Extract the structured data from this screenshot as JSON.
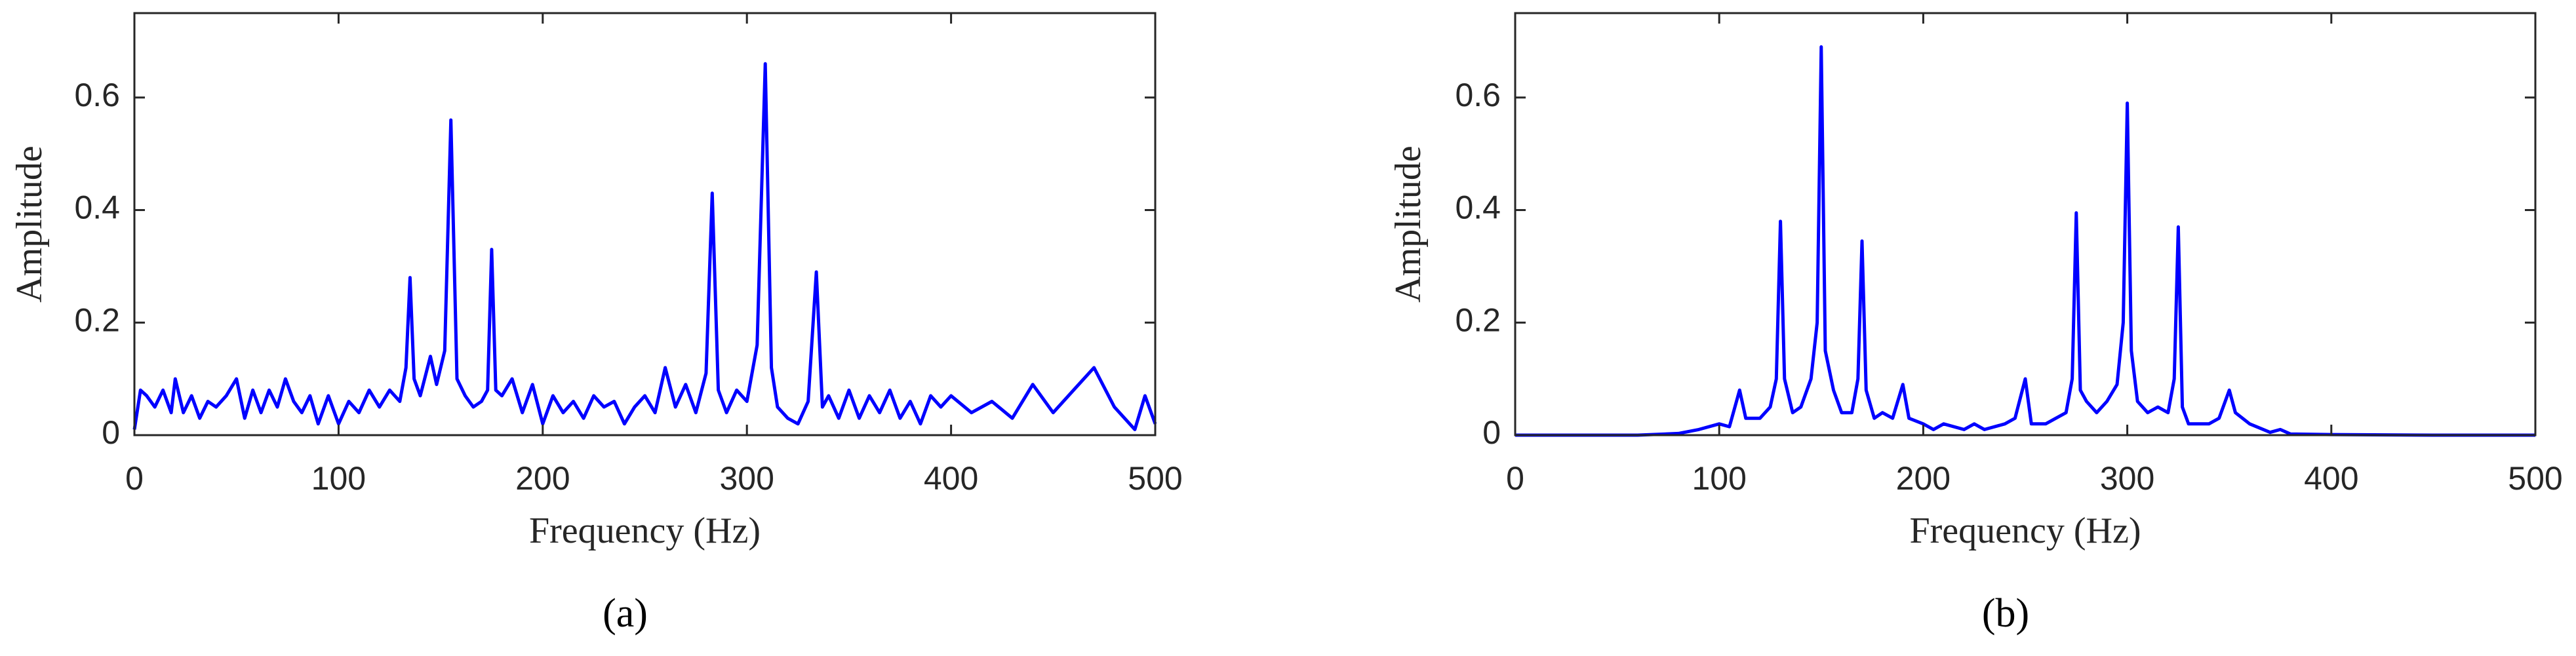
{
  "chart_data": [
    {
      "type": "line",
      "caption": "(a)",
      "xlabel": "Frequency (Hz)",
      "ylabel": "Amplitude",
      "color": "#0000ff",
      "xlim": [
        0,
        500
      ],
      "ylim": [
        0,
        0.75
      ],
      "xticks": [
        0,
        100,
        200,
        300,
        400,
        500
      ],
      "yticks": [
        0,
        0.2,
        0.4,
        0.6
      ],
      "x": [
        0,
        3,
        6,
        10,
        14,
        18,
        20,
        24,
        28,
        32,
        36,
        40,
        45,
        50,
        54,
        58,
        62,
        66,
        70,
        74,
        78,
        82,
        86,
        90,
        95,
        100,
        105,
        110,
        115,
        120,
        125,
        130,
        133,
        135,
        137,
        140,
        145,
        148,
        152,
        155,
        158,
        162,
        166,
        170,
        173,
        175,
        177,
        180,
        185,
        190,
        195,
        200,
        205,
        210,
        215,
        220,
        225,
        230,
        235,
        240,
        245,
        250,
        255,
        260,
        265,
        270,
        275,
        280,
        283,
        286,
        290,
        295,
        300,
        305,
        309,
        312,
        315,
        320,
        325,
        330,
        334,
        337,
        340,
        345,
        350,
        355,
        360,
        365,
        370,
        375,
        380,
        385,
        390,
        395,
        400,
        410,
        420,
        430,
        440,
        450,
        460,
        470,
        480,
        490,
        495,
        500
      ],
      "values": [
        0.01,
        0.08,
        0.07,
        0.05,
        0.08,
        0.04,
        0.1,
        0.04,
        0.07,
        0.03,
        0.06,
        0.05,
        0.07,
        0.1,
        0.03,
        0.08,
        0.04,
        0.08,
        0.05,
        0.1,
        0.06,
        0.04,
        0.07,
        0.02,
        0.07,
        0.02,
        0.06,
        0.04,
        0.08,
        0.05,
        0.08,
        0.06,
        0.12,
        0.28,
        0.1,
        0.07,
        0.14,
        0.09,
        0.15,
        0.56,
        0.1,
        0.07,
        0.05,
        0.06,
        0.08,
        0.33,
        0.08,
        0.07,
        0.1,
        0.04,
        0.09,
        0.02,
        0.07,
        0.04,
        0.06,
        0.03,
        0.07,
        0.05,
        0.06,
        0.02,
        0.05,
        0.07,
        0.04,
        0.12,
        0.05,
        0.09,
        0.04,
        0.11,
        0.43,
        0.08,
        0.04,
        0.08,
        0.06,
        0.16,
        0.66,
        0.12,
        0.05,
        0.03,
        0.02,
        0.06,
        0.29,
        0.05,
        0.07,
        0.03,
        0.08,
        0.03,
        0.07,
        0.04,
        0.08,
        0.03,
        0.06,
        0.02,
        0.07,
        0.05,
        0.07,
        0.04,
        0.06,
        0.03,
        0.09,
        0.04,
        0.08,
        0.12,
        0.05,
        0.01,
        0.07,
        0.02
      ]
    },
    {
      "type": "line",
      "caption": "(b)",
      "xlabel": "Frequency (Hz)",
      "ylabel": "Amplitude",
      "color": "#0000ff",
      "xlim": [
        0,
        500
      ],
      "ylim": [
        0,
        0.75
      ],
      "xticks": [
        0,
        100,
        200,
        300,
        400,
        500
      ],
      "yticks": [
        0,
        0.2,
        0.4,
        0.6
      ],
      "x": [
        0,
        20,
        40,
        60,
        80,
        90,
        100,
        105,
        110,
        113,
        120,
        125,
        128,
        130,
        132,
        136,
        140,
        145,
        148,
        150,
        152,
        156,
        160,
        165,
        168,
        170,
        172,
        176,
        180,
        185,
        190,
        193,
        200,
        205,
        210,
        220,
        225,
        230,
        240,
        245,
        250,
        253,
        260,
        265,
        270,
        273,
        275,
        277,
        280,
        285,
        290,
        295,
        298,
        300,
        302,
        305,
        310,
        315,
        320,
        323,
        325,
        327,
        330,
        340,
        345,
        350,
        353,
        360,
        370,
        375,
        380,
        400,
        450,
        500
      ],
      "values": [
        0,
        0,
        0,
        0,
        0.003,
        0.01,
        0.02,
        0.015,
        0.08,
        0.03,
        0.03,
        0.05,
        0.1,
        0.38,
        0.1,
        0.04,
        0.05,
        0.1,
        0.2,
        0.69,
        0.15,
        0.08,
        0.04,
        0.04,
        0.1,
        0.345,
        0.08,
        0.03,
        0.04,
        0.03,
        0.09,
        0.03,
        0.02,
        0.01,
        0.02,
        0.01,
        0.02,
        0.01,
        0.02,
        0.03,
        0.1,
        0.02,
        0.02,
        0.03,
        0.04,
        0.1,
        0.395,
        0.08,
        0.06,
        0.04,
        0.06,
        0.09,
        0.2,
        0.59,
        0.15,
        0.06,
        0.04,
        0.05,
        0.04,
        0.1,
        0.37,
        0.05,
        0.02,
        0.02,
        0.03,
        0.08,
        0.04,
        0.02,
        0.005,
        0.01,
        0.002,
        0.001,
        0,
        0
      ]
    }
  ]
}
